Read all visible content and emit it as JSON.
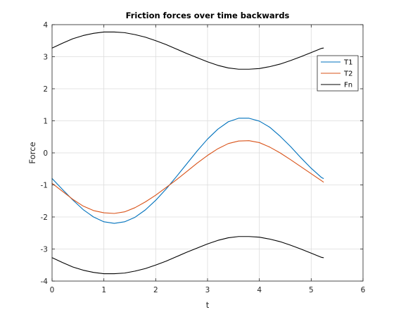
{
  "chart_data": {
    "type": "line",
    "title": "Friction forces over time backwards",
    "xlabel": "t",
    "ylabel": "Force",
    "xlim": [
      0,
      6
    ],
    "ylim": [
      -4,
      4
    ],
    "xticks": [
      0,
      1,
      2,
      3,
      4,
      5,
      6
    ],
    "yticks": [
      -4,
      -3,
      -2,
      -1,
      0,
      1,
      2,
      3,
      4
    ],
    "grid": true,
    "legend_position": "top-right",
    "series": [
      {
        "name": "T1",
        "color": "#0072BD",
        "x": [
          0,
          0.2,
          0.4,
          0.6,
          0.8,
          1.0,
          1.2,
          1.4,
          1.6,
          1.8,
          2.0,
          2.2,
          2.4,
          2.6,
          2.8,
          3.0,
          3.2,
          3.4,
          3.6,
          3.8,
          4.0,
          4.2,
          4.4,
          4.6,
          4.8,
          5.0,
          5.2,
          5.236
        ],
        "values": [
          -0.8,
          -1.14,
          -1.47,
          -1.77,
          -2.0,
          -2.15,
          -2.2,
          -2.15,
          -2.01,
          -1.78,
          -1.48,
          -1.13,
          -0.74,
          -0.34,
          0.06,
          0.43,
          0.74,
          0.97,
          1.08,
          1.08,
          0.99,
          0.8,
          0.52,
          0.2,
          -0.15,
          -0.48,
          -0.77,
          -0.8
        ]
      },
      {
        "name": "T2",
        "color": "#D95319",
        "x": [
          0,
          0.2,
          0.4,
          0.6,
          0.8,
          1.0,
          1.2,
          1.4,
          1.6,
          1.8,
          2.0,
          2.2,
          2.4,
          2.6,
          2.8,
          3.0,
          3.2,
          3.4,
          3.6,
          3.8,
          4.0,
          4.2,
          4.4,
          4.6,
          4.8,
          5.0,
          5.2,
          5.236
        ],
        "values": [
          -0.95,
          -1.2,
          -1.45,
          -1.66,
          -1.8,
          -1.87,
          -1.89,
          -1.84,
          -1.71,
          -1.53,
          -1.32,
          -1.08,
          -0.84,
          -0.58,
          -0.32,
          -0.08,
          0.13,
          0.29,
          0.37,
          0.38,
          0.32,
          0.18,
          0.0,
          -0.21,
          -0.43,
          -0.65,
          -0.87,
          -0.91
        ]
      },
      {
        "name": "Fn",
        "color": "#000000",
        "x": [
          0,
          0.2,
          0.4,
          0.6,
          0.8,
          1.0,
          1.2,
          1.4,
          1.6,
          1.8,
          2.0,
          2.2,
          2.4,
          2.6,
          2.8,
          3.0,
          3.2,
          3.4,
          3.6,
          3.8,
          4.0,
          4.2,
          4.4,
          4.6,
          4.8,
          5.0,
          5.2,
          5.236
        ],
        "values": [
          3.27,
          3.42,
          3.56,
          3.66,
          3.73,
          3.77,
          3.77,
          3.75,
          3.69,
          3.61,
          3.5,
          3.38,
          3.24,
          3.1,
          2.97,
          2.84,
          2.73,
          2.65,
          2.61,
          2.61,
          2.63,
          2.69,
          2.77,
          2.88,
          3.0,
          3.13,
          3.26,
          3.27
        ]
      },
      {
        "name": "",
        "color": "#000000",
        "x": [
          0,
          0.2,
          0.4,
          0.6,
          0.8,
          1.0,
          1.2,
          1.4,
          1.6,
          1.8,
          2.0,
          2.2,
          2.4,
          2.6,
          2.8,
          3.0,
          3.2,
          3.4,
          3.6,
          3.8,
          4.0,
          4.2,
          4.4,
          4.6,
          4.8,
          5.0,
          5.2,
          5.236
        ],
        "values": [
          -3.27,
          -3.42,
          -3.56,
          -3.66,
          -3.73,
          -3.77,
          -3.77,
          -3.75,
          -3.69,
          -3.61,
          -3.5,
          -3.38,
          -3.24,
          -3.1,
          -2.97,
          -2.84,
          -2.73,
          -2.65,
          -2.61,
          -2.61,
          -2.63,
          -2.69,
          -2.77,
          -2.88,
          -3.0,
          -3.13,
          -3.26,
          -3.27
        ]
      }
    ]
  }
}
